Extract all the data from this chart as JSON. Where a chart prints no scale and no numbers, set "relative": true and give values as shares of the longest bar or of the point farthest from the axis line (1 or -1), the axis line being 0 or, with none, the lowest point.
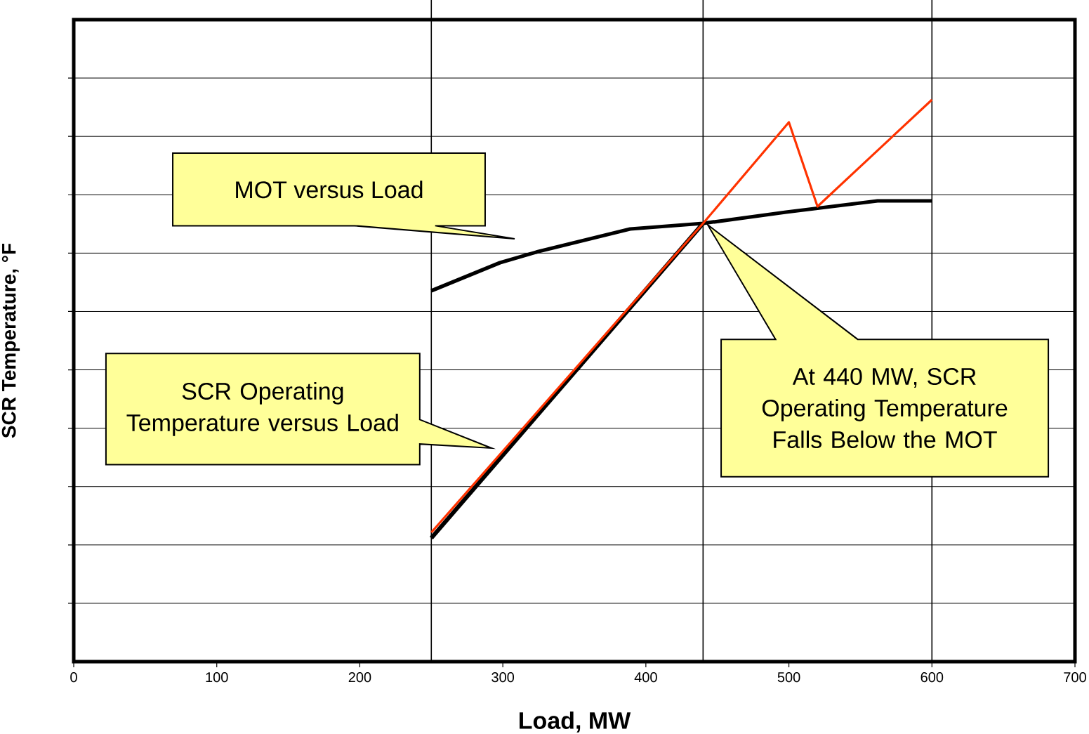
{
  "chart_data": {
    "type": "line",
    "relative": true,
    "xlabel": "Load, MW",
    "ylabel": "SCR Temperature, °F",
    "xlim": [
      0,
      700
    ],
    "xticks": [
      0,
      100,
      200,
      300,
      400,
      500,
      600,
      700
    ],
    "grid": "y",
    "marker": "none",
    "line_style": "solid",
    "series": [
      {
        "color": "#000000",
        "x": [
          250,
          298,
          325,
          389,
          440,
          498,
          562,
          600
        ],
        "values": [
          0.66,
          0.71,
          0.73,
          0.77,
          0.78,
          0.8,
          0.82,
          0.82
        ]
      },
      {
        "color": "#000000",
        "x": [
          250,
          440
        ],
        "values": [
          0.22,
          0.78
        ]
      },
      {
        "color": "#ff3300",
        "x": [
          250,
          440,
          500,
          520,
          600
        ],
        "values": [
          0.23,
          0.78,
          0.96,
          0.81,
          1.0
        ]
      }
    ],
    "ref_lines": [
      {
        "axis": "x",
        "value": 250,
        "color": "#000000"
      },
      {
        "axis": "x",
        "value": 440,
        "color": "#000000"
      },
      {
        "axis": "x",
        "value": 600,
        "color": "#000000"
      }
    ],
    "annotations": [
      "MOT versus Load",
      "SCR Operating Temperature versus Load",
      "At 440 MW, SCR Operating Temperature Falls Below the MOT"
    ]
  }
}
